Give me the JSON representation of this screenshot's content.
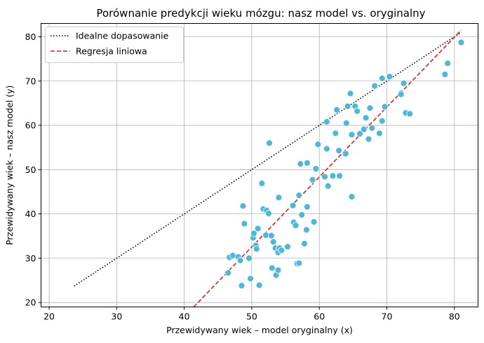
{
  "chart_data": {
    "type": "scatter",
    "title": "Porównanie predykcji wieku mózgu: nasz model vs. oryginalny",
    "xlabel": "Przewidywany wiek – model oryginalny (x)",
    "ylabel": "Przewidywany wiek – nasz model (y)",
    "xlim": [
      18.8,
      83.5
    ],
    "ylim": [
      19.0,
      83.0
    ],
    "xticks": [
      "20",
      "30",
      "40",
      "50",
      "60",
      "70",
      "80"
    ],
    "yticks": [
      "20",
      "30",
      "40",
      "50",
      "60",
      "70",
      "80"
    ],
    "grid": true,
    "legend_position": "top-left",
    "colors": {
      "points": "#4DB8D8",
      "point_edge": "#ffffff",
      "ideal_line": "#000000",
      "regression_line": "#E02020",
      "grid": "#b0b0b0"
    },
    "legend": [
      {
        "label": "Idealne dopasowanie",
        "style": "dotted",
        "color": "#000000"
      },
      {
        "label": "Regresja liniowa",
        "style": "dashed",
        "color": "#E02020"
      }
    ],
    "ideal_line": {
      "x": [
        23.7,
        81.0
      ],
      "y": [
        23.7,
        81.0
      ]
    },
    "regression_line": {
      "x": [
        41.4,
        81.0
      ],
      "y": [
        19.0,
        81.5
      ]
    },
    "points": [
      [
        46.5,
        26.7
      ],
      [
        46.7,
        30.2
      ],
      [
        47.2,
        30.6
      ],
      [
        48.0,
        30.3
      ],
      [
        48.3,
        29.5
      ],
      [
        48.5,
        23.8
      ],
      [
        48.7,
        41.8
      ],
      [
        48.9,
        37.8
      ],
      [
        49.6,
        30.0
      ],
      [
        49.8,
        25.4
      ],
      [
        50.2,
        34.6
      ],
      [
        50.3,
        35.6
      ],
      [
        50.6,
        32.9
      ],
      [
        50.7,
        32.1
      ],
      [
        50.9,
        36.7
      ],
      [
        51.1,
        23.9
      ],
      [
        51.5,
        46.9
      ],
      [
        51.7,
        41.1
      ],
      [
        52.1,
        35.2
      ],
      [
        52.2,
        40.8
      ],
      [
        52.5,
        40.1
      ],
      [
        52.6,
        56.0
      ],
      [
        52.9,
        35.1
      ],
      [
        53.0,
        27.8
      ],
      [
        53.2,
        33.7
      ],
      [
        53.5,
        32.3
      ],
      [
        53.6,
        26.2
      ],
      [
        53.9,
        27.3
      ],
      [
        53.9,
        31.3
      ],
      [
        54.0,
        43.7
      ],
      [
        54.1,
        32.3
      ],
      [
        54.4,
        31.8
      ],
      [
        55.3,
        32.6
      ],
      [
        56.1,
        41.9
      ],
      [
        56.2,
        38.1
      ],
      [
        56.5,
        37.4
      ],
      [
        56.7,
        28.8
      ],
      [
        57.0,
        28.9
      ],
      [
        57.0,
        44.2
      ],
      [
        57.2,
        51.3
      ],
      [
        57.4,
        39.8
      ],
      [
        57.8,
        33.3
      ],
      [
        58.1,
        36.4
      ],
      [
        58.2,
        51.5
      ],
      [
        58.2,
        41.6
      ],
      [
        59.0,
        47.7
      ],
      [
        59.2,
        38.2
      ],
      [
        59.5,
        50.2
      ],
      [
        59.8,
        55.7
      ],
      [
        60.8,
        48.4
      ],
      [
        61.1,
        60.8
      ],
      [
        61.1,
        54.7
      ],
      [
        61.3,
        46.3
      ],
      [
        62.0,
        48.6
      ],
      [
        62.4,
        58.2
      ],
      [
        62.6,
        63.5
      ],
      [
        62.9,
        54.3
      ],
      [
        63.0,
        48.6
      ],
      [
        63.9,
        53.6
      ],
      [
        64.0,
        60.5
      ],
      [
        64.2,
        64.3
      ],
      [
        64.6,
        67.2
      ],
      [
        64.8,
        57.9
      ],
      [
        65.3,
        64.3
      ],
      [
        65.6,
        63.2
      ],
      [
        66.0,
        58.1
      ],
      [
        66.6,
        59.1
      ],
      [
        66.9,
        61.7
      ],
      [
        67.3,
        56.9
      ],
      [
        67.5,
        63.9
      ],
      [
        67.8,
        59.4
      ],
      [
        68.2,
        68.9
      ],
      [
        68.9,
        58.2
      ],
      [
        69.3,
        70.6
      ],
      [
        69.3,
        61.0
      ],
      [
        69.7,
        64.2
      ],
      [
        70.4,
        71.0
      ],
      [
        72.1,
        67.3
      ],
      [
        72.1,
        67.0
      ],
      [
        72.5,
        69.5
      ],
      [
        72.8,
        62.8
      ],
      [
        73.4,
        62.6
      ],
      [
        78.6,
        71.5
      ],
      [
        79.0,
        74.0
      ],
      [
        81.0,
        78.7
      ],
      [
        64.8,
        43.9
      ]
    ]
  }
}
